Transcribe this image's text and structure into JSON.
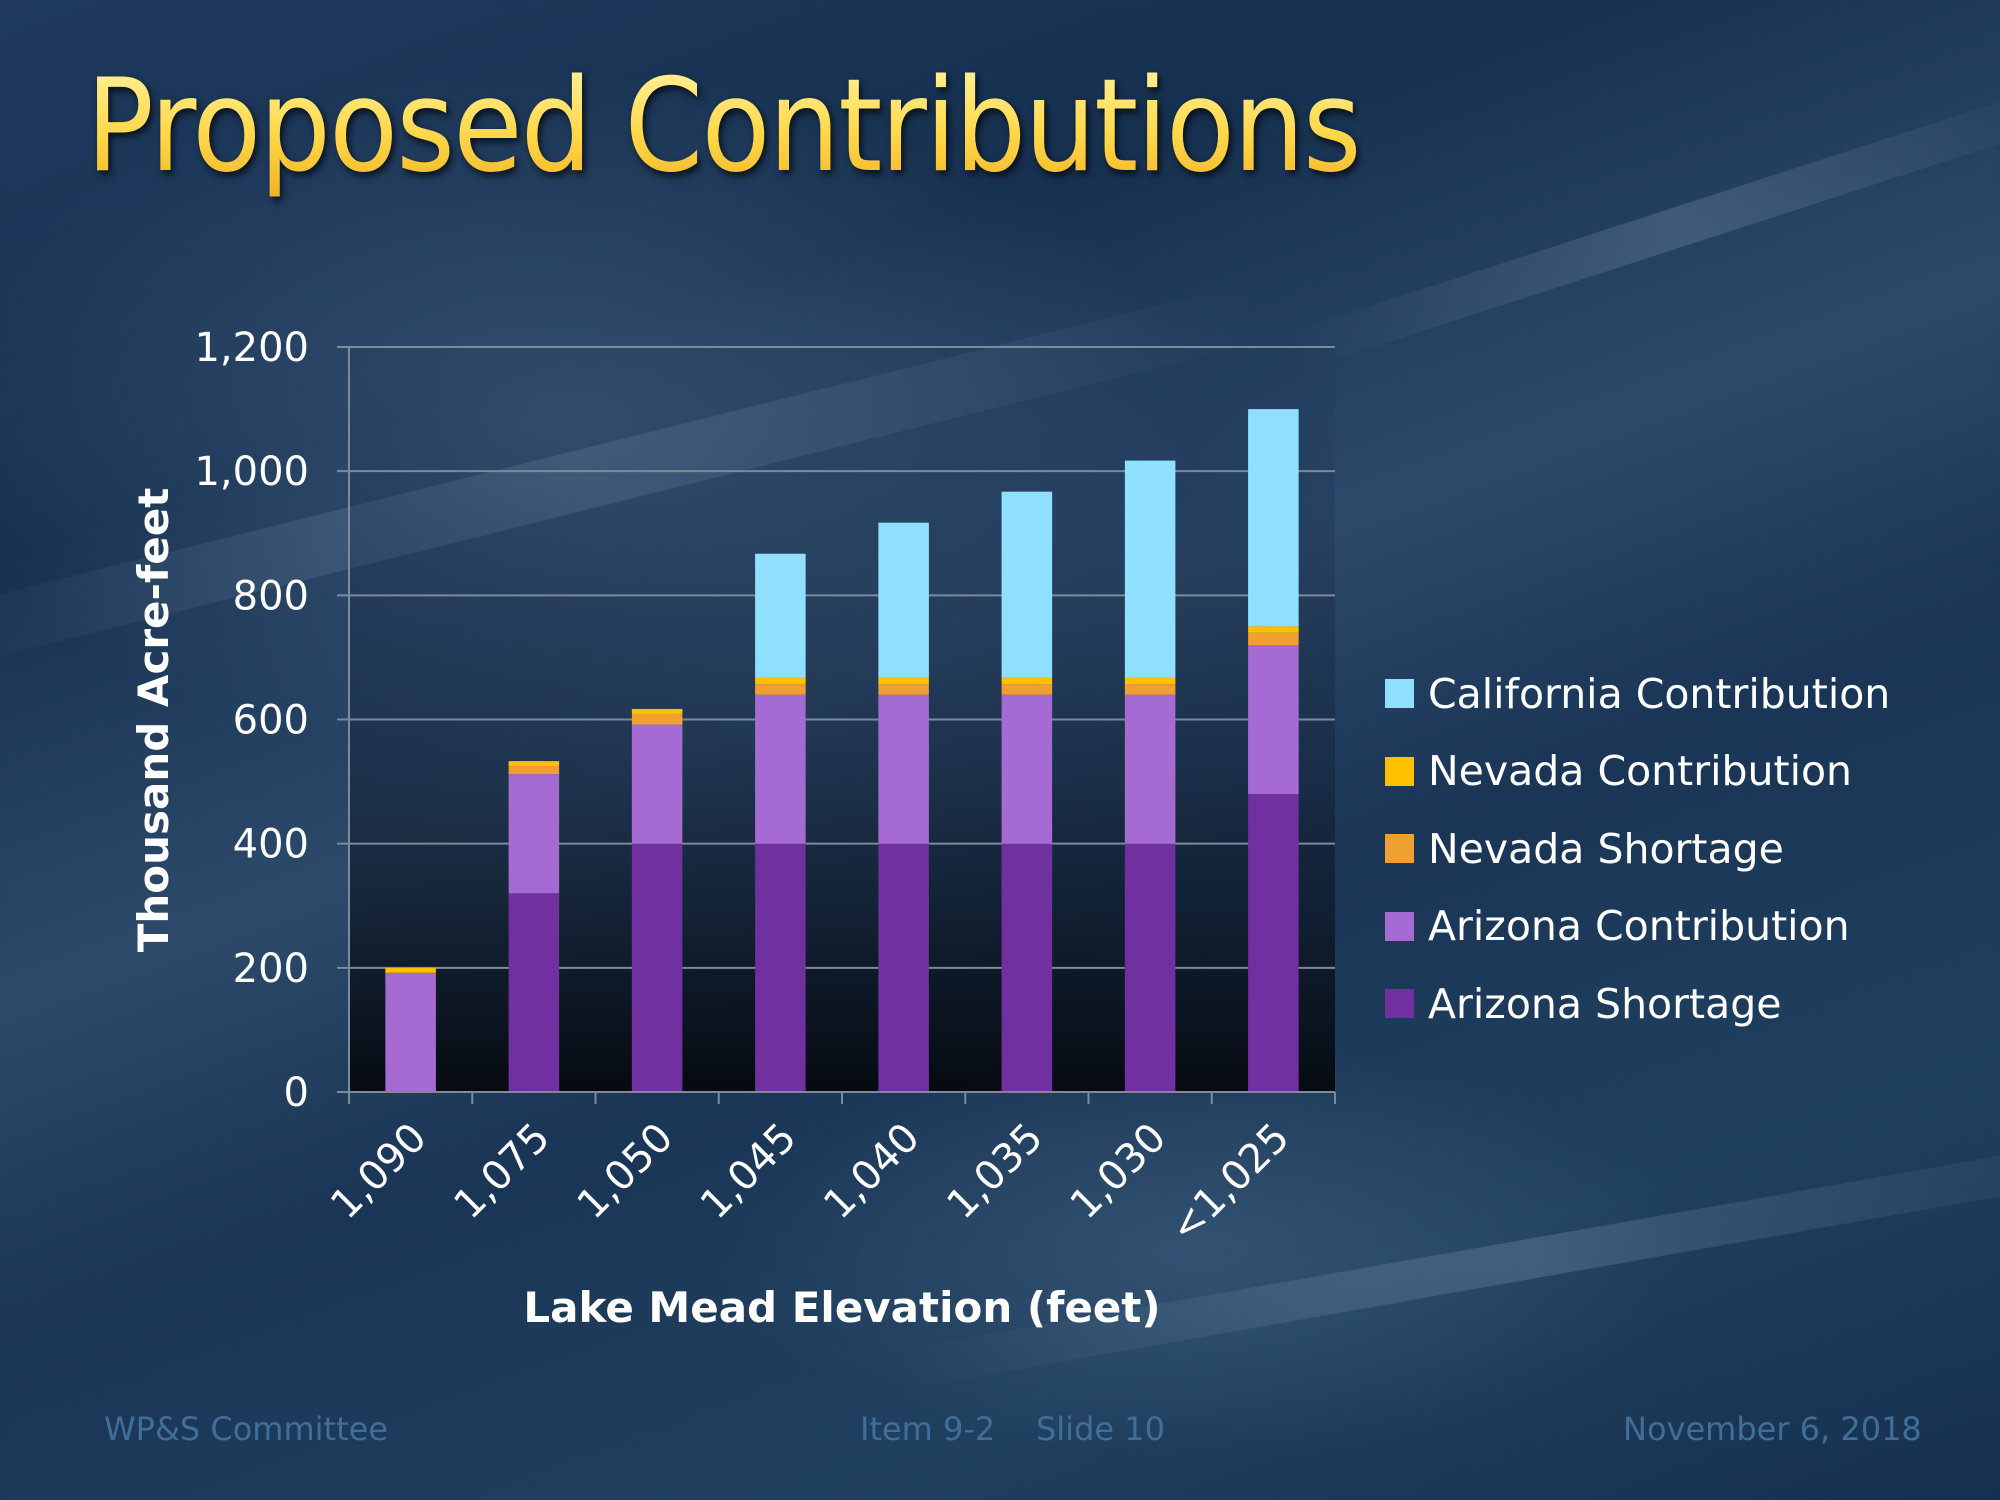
{
  "slide": {
    "title": "Proposed Contributions",
    "footer": {
      "left": "WP&S Committee",
      "center": "Item 9-2    Slide 10",
      "right": "November 6, 2018"
    }
  },
  "chart_data": {
    "type": "bar",
    "stacked": true,
    "title": "Proposed Contributions",
    "xlabel": "Lake Mead Elevation (feet)",
    "ylabel": "Thousand Acre-feet",
    "ylim": [
      0,
      1200
    ],
    "yticks": [
      0,
      200,
      400,
      600,
      800,
      1000,
      1200
    ],
    "ytick_labels": [
      "0",
      "200",
      "400",
      "600",
      "800",
      "1,000",
      "1,200"
    ],
    "grid": true,
    "legend_position": "right",
    "categories": [
      "1,090",
      "1,075",
      "1,050",
      "1,045",
      "1,040",
      "1,035",
      "1,030",
      "<1,025"
    ],
    "series": [
      {
        "name": "Arizona Shortage",
        "color": "#7030a0",
        "values": [
          0,
          320,
          400,
          400,
          400,
          400,
          400,
          480
        ]
      },
      {
        "name": "Arizona Contribution",
        "color": "#a66bd3",
        "values": [
          192,
          192,
          192,
          240,
          240,
          240,
          240,
          240
        ]
      },
      {
        "name": "Nevada Shortage",
        "color": "#f0a030",
        "values": [
          0,
          13,
          17,
          17,
          17,
          17,
          17,
          20
        ]
      },
      {
        "name": "Nevada Contribution",
        "color": "#ffc000",
        "values": [
          8,
          8,
          8,
          10,
          10,
          10,
          10,
          10
        ]
      },
      {
        "name": "California Contribution",
        "color": "#8fe0ff",
        "values": [
          0,
          0,
          0,
          200,
          250,
          300,
          350,
          350
        ]
      }
    ],
    "legend_order": [
      "California Contribution",
      "Nevada Contribution",
      "Nevada Shortage",
      "Arizona Contribution",
      "Arizona Shortage"
    ]
  }
}
